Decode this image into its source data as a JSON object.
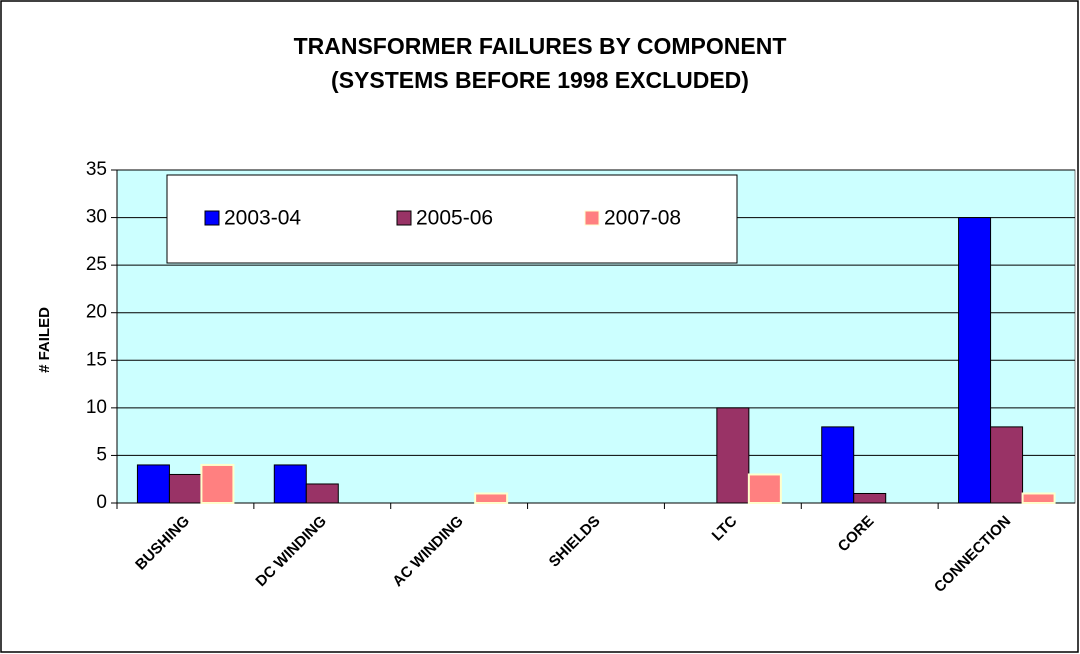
{
  "chart_data": {
    "type": "bar",
    "title": [
      "TRANSFORMER FAILURES BY COMPONENT",
      "(SYSTEMS BEFORE 1998 EXCLUDED)"
    ],
    "y_label": "# FAILED",
    "categories": [
      "BUSHING",
      "DC WINDING",
      "AC WINDING",
      "SHIELDS",
      "LTC",
      "CORE",
      "CONNECTION"
    ],
    "series": [
      {
        "name": "2003-04",
        "color": "#0000ff",
        "values": [
          4,
          4,
          0,
          0,
          0,
          8,
          30
        ]
      },
      {
        "name": "2005-06",
        "color": "#993366",
        "values": [
          3,
          2,
          0,
          0,
          10,
          1,
          8
        ]
      },
      {
        "name": "2007-08",
        "color": "#ff8080",
        "values": [
          4,
          0,
          1,
          0,
          3,
          0,
          1
        ]
      }
    ],
    "ylim": [
      0,
      35
    ],
    "yticks": [
      0,
      5,
      10,
      15,
      20,
      25,
      30,
      35
    ],
    "grid": true,
    "plot_background": "#ccffff",
    "legend": "top-left"
  }
}
